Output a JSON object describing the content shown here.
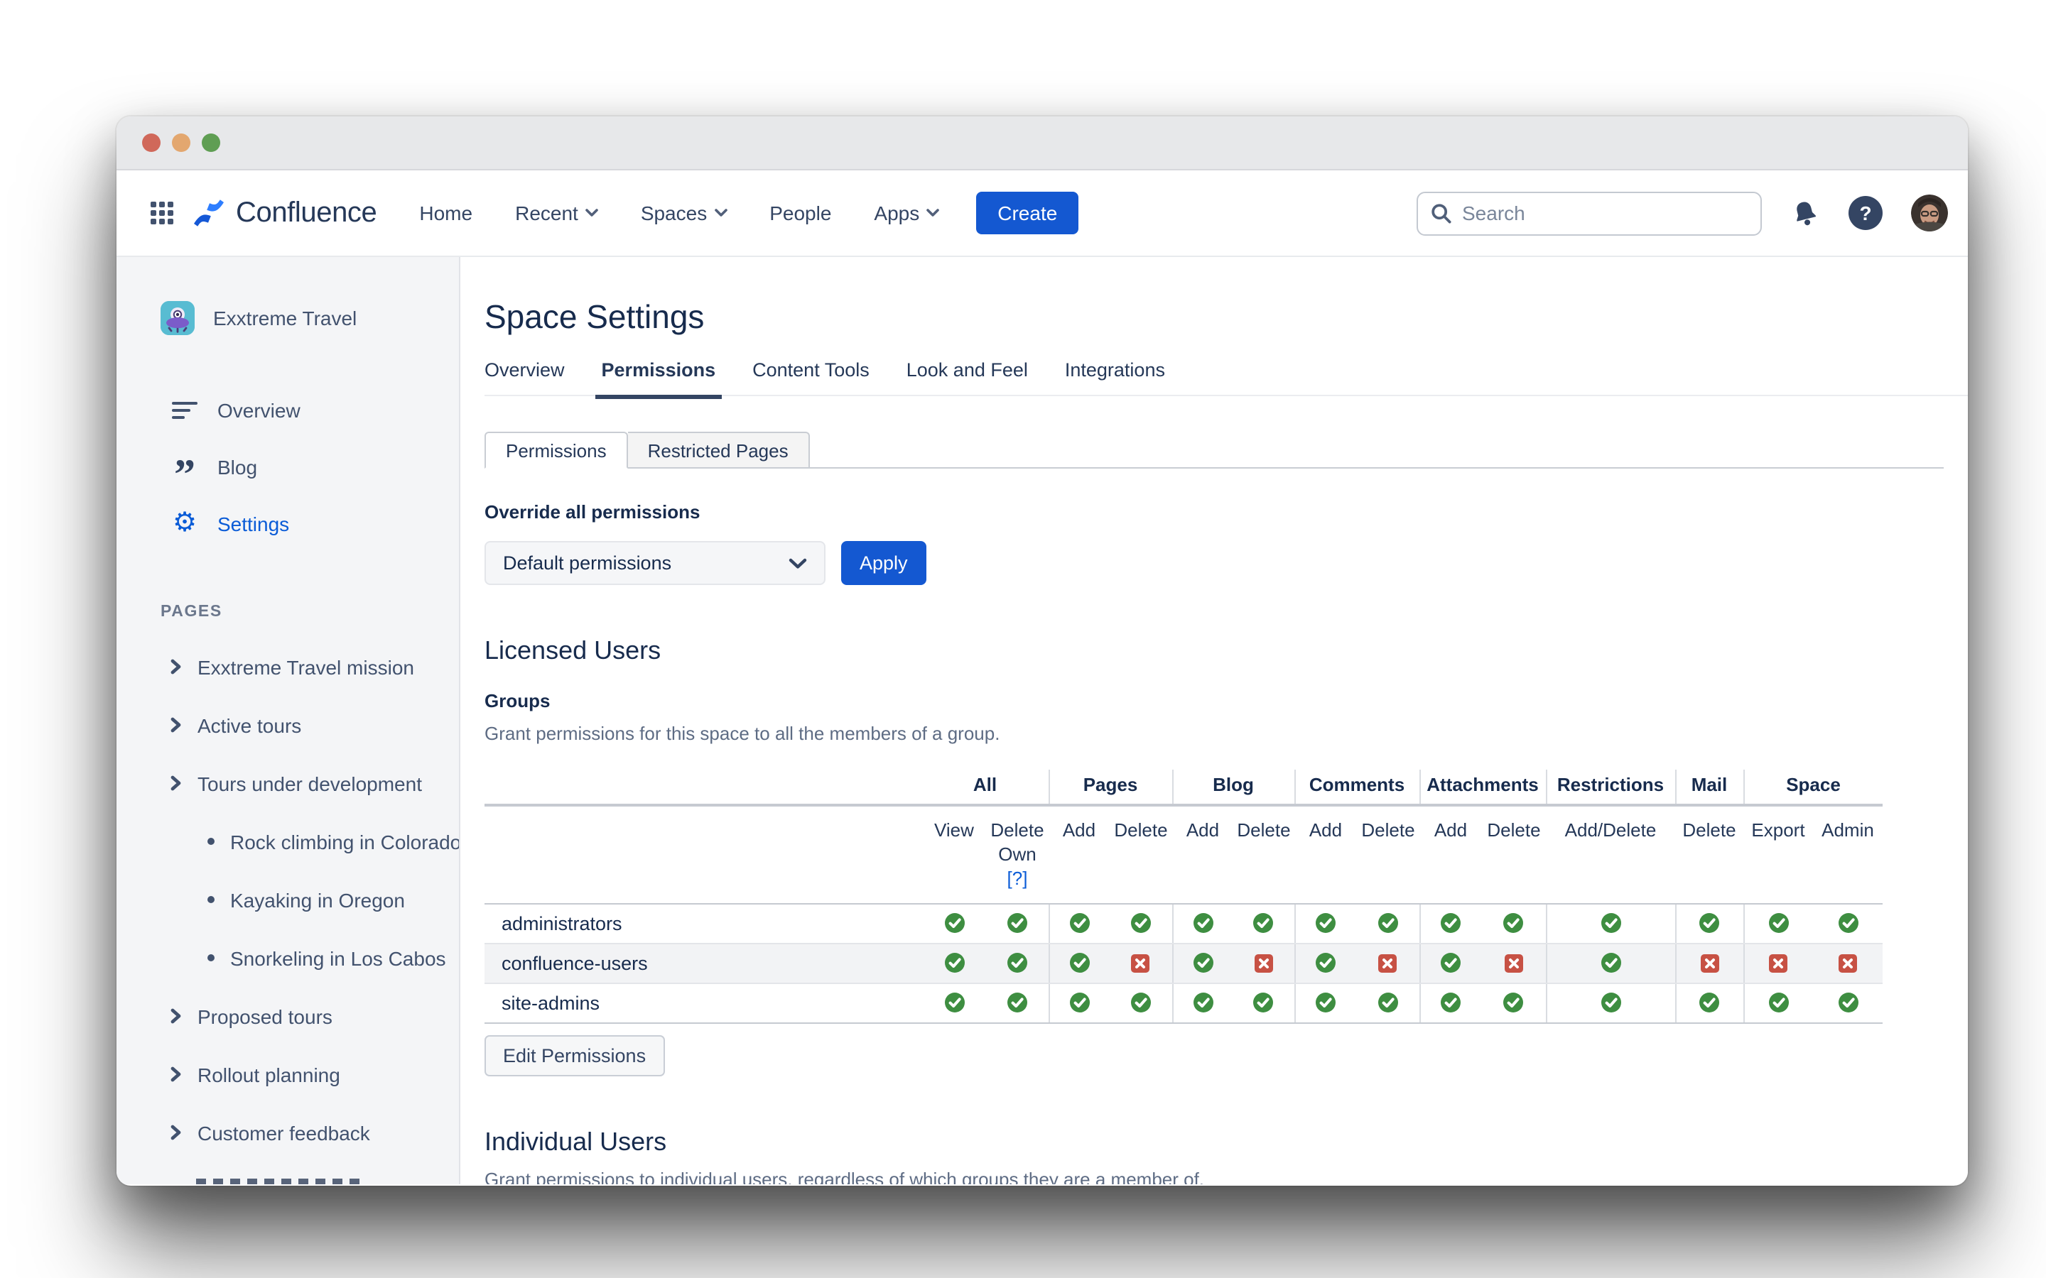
{
  "window": {
    "traffic_light_colors": [
      "#d0685a",
      "#e3a76f",
      "#5f9e53"
    ]
  },
  "nav": {
    "brand": "Confluence",
    "items": [
      {
        "label": "Home",
        "chevron": false
      },
      {
        "label": "Recent",
        "chevron": true
      },
      {
        "label": "Spaces",
        "chevron": true
      },
      {
        "label": "People",
        "chevron": false
      },
      {
        "label": "Apps",
        "chevron": true
      }
    ],
    "create_label": "Create",
    "search_placeholder": "Search"
  },
  "sidebar": {
    "space_name": "Exxtreme Travel",
    "menu": [
      {
        "label": "Overview",
        "icon": "overview-icon",
        "active": false
      },
      {
        "label": "Blog",
        "icon": "blog-icon",
        "active": false
      },
      {
        "label": "Settings",
        "icon": "gear-icon",
        "active": true
      }
    ],
    "section_label": "PAGES",
    "pages": [
      {
        "label": "Exxtreme Travel mission",
        "type": "chevron"
      },
      {
        "label": "Active tours",
        "type": "chevron"
      },
      {
        "label": "Tours under development",
        "type": "chevron"
      },
      {
        "label": "Rock climbing in Colorado",
        "type": "bullet"
      },
      {
        "label": "Kayaking in Oregon",
        "type": "bullet"
      },
      {
        "label": "Snorkeling in Los Cabos",
        "type": "bullet"
      },
      {
        "label": "Proposed tours",
        "type": "chevron"
      },
      {
        "label": "Rollout planning",
        "type": "chevron"
      },
      {
        "label": "Customer feedback",
        "type": "chevron"
      }
    ]
  },
  "main": {
    "title": "Space Settings",
    "tabs": [
      {
        "label": "Overview",
        "active": false
      },
      {
        "label": "Permissions",
        "active": true
      },
      {
        "label": "Content Tools",
        "active": false
      },
      {
        "label": "Look and Feel",
        "active": false
      },
      {
        "label": "Integrations",
        "active": false
      }
    ],
    "subtabs": [
      {
        "label": "Permissions",
        "active": true
      },
      {
        "label": "Restricted Pages",
        "active": false
      }
    ],
    "override": {
      "heading": "Override all permissions",
      "dropdown_value": "Default permissions",
      "apply_label": "Apply"
    },
    "licensed_users": {
      "heading": "Licensed Users",
      "groups_heading": "Groups",
      "groups_desc": "Grant permissions for this space to all the members of a group.",
      "edit_button": "Edit Permissions"
    },
    "individual_users": {
      "heading": "Individual Users",
      "desc": "Grant permissions to individual users, regardless of which groups they are a member of."
    },
    "table": {
      "group_headers": [
        {
          "label": "All",
          "cols": 2
        },
        {
          "label": "Pages",
          "cols": 2
        },
        {
          "label": "Blog",
          "cols": 2
        },
        {
          "label": "Comments",
          "cols": 2
        },
        {
          "label": "Attachments",
          "cols": 2
        },
        {
          "label": "Restrictions",
          "cols": 1
        },
        {
          "label": "Mail",
          "cols": 1
        },
        {
          "label": "Space",
          "cols": 2
        }
      ],
      "sub_headers": [
        "View",
        "Delete\nOwn",
        "Add",
        "Delete",
        "Add",
        "Delete",
        "Add",
        "Delete",
        "Add",
        "Delete",
        "Add/Delete",
        "Delete",
        "Export",
        "Admin"
      ],
      "help_link": "[?]",
      "rows": [
        {
          "name": "administrators",
          "perms": [
            "check",
            "check",
            "check",
            "check",
            "check",
            "check",
            "check",
            "check",
            "check",
            "check",
            "check",
            "check",
            "check",
            "check"
          ]
        },
        {
          "name": "confluence-users",
          "perms": [
            "check",
            "check",
            "check",
            "cross",
            "check",
            "cross",
            "check",
            "cross",
            "check",
            "cross",
            "check",
            "cross",
            "cross",
            "cross"
          ]
        },
        {
          "name": "site-admins",
          "perms": [
            "check",
            "check",
            "check",
            "check",
            "check",
            "check",
            "check",
            "check",
            "check",
            "check",
            "check",
            "check",
            "check",
            "check"
          ]
        }
      ]
    },
    "colors": {
      "check": "#3e8e41",
      "cross": "#c75144",
      "accent_blue": "#1458d1"
    }
  }
}
